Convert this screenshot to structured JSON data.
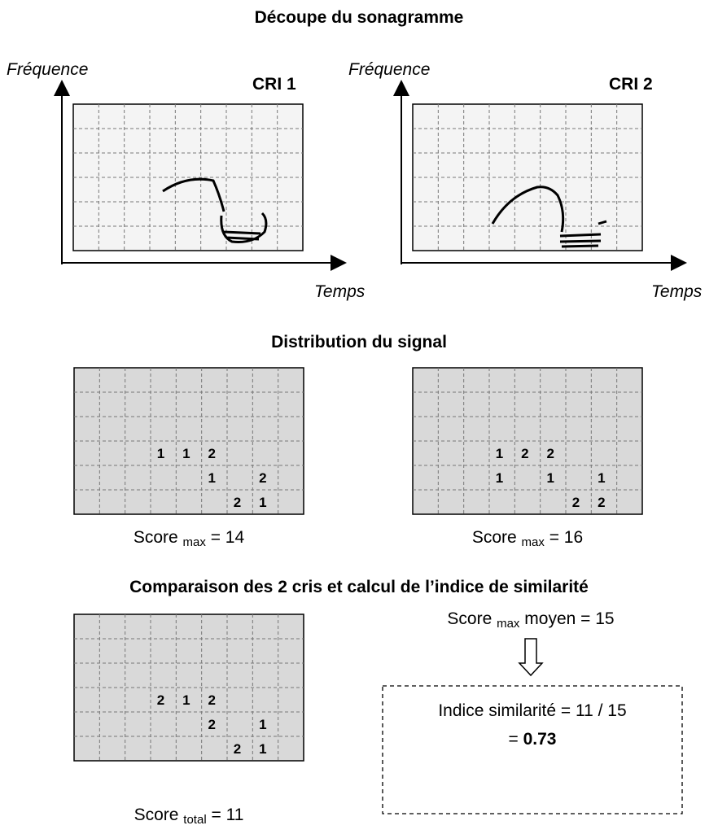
{
  "sonagram": {
    "title": "Découpe du sonagramme",
    "left": {
      "y_axis": "Fréquence",
      "x_axis": "Temps",
      "label": "CRI 1"
    },
    "right": {
      "y_axis": "Fréquence",
      "x_axis": "Temps",
      "label": "CRI 2"
    }
  },
  "distribution": {
    "title": "Distribution du signal",
    "left": {
      "grid": [
        [
          null,
          null,
          null,
          null,
          null,
          null,
          null,
          null,
          null
        ],
        [
          null,
          null,
          null,
          null,
          null,
          null,
          null,
          null,
          null
        ],
        [
          null,
          null,
          null,
          null,
          null,
          null,
          null,
          null,
          null
        ],
        [
          null,
          null,
          null,
          1,
          1,
          2,
          null,
          null,
          null
        ],
        [
          null,
          null,
          null,
          null,
          null,
          1,
          null,
          2,
          null
        ],
        [
          null,
          null,
          null,
          null,
          null,
          null,
          2,
          1,
          null
        ]
      ],
      "score": {
        "label": "Score",
        "sub": "max",
        "rest": "= 14"
      }
    },
    "right": {
      "grid": [
        [
          null,
          null,
          null,
          null,
          null,
          null,
          null,
          null,
          null
        ],
        [
          null,
          null,
          null,
          null,
          null,
          null,
          null,
          null,
          null
        ],
        [
          null,
          null,
          null,
          null,
          null,
          null,
          null,
          null,
          null
        ],
        [
          null,
          null,
          null,
          1,
          2,
          2,
          null,
          null,
          null
        ],
        [
          null,
          null,
          null,
          1,
          null,
          1,
          null,
          1,
          null
        ],
        [
          null,
          null,
          null,
          null,
          null,
          null,
          2,
          2,
          null
        ]
      ],
      "score": {
        "label": "Score",
        "sub": "max",
        "rest": "= 16"
      }
    }
  },
  "comparison": {
    "title": "Comparaison des 2 cris et calcul de l’indice de similarité",
    "grid": [
      [
        null,
        null,
        null,
        null,
        null,
        null,
        null,
        null,
        null
      ],
      [
        null,
        null,
        null,
        null,
        null,
        null,
        null,
        null,
        null
      ],
      [
        null,
        null,
        null,
        null,
        null,
        null,
        null,
        null,
        null
      ],
      [
        null,
        null,
        null,
        2,
        1,
        2,
        null,
        null,
        null
      ],
      [
        null,
        null,
        null,
        null,
        null,
        2,
        null,
        1,
        null
      ],
      [
        null,
        null,
        null,
        null,
        null,
        null,
        2,
        1,
        null
      ]
    ],
    "score": {
      "label": "Score",
      "sub": "total",
      "rest": "= 11"
    },
    "mean": {
      "label": "Score",
      "sub": "max",
      "rest": "moyen = 15"
    },
    "index": {
      "line1": "Indice similarité = 11 / 15",
      "eq": "=",
      "result": "0.73"
    }
  }
}
